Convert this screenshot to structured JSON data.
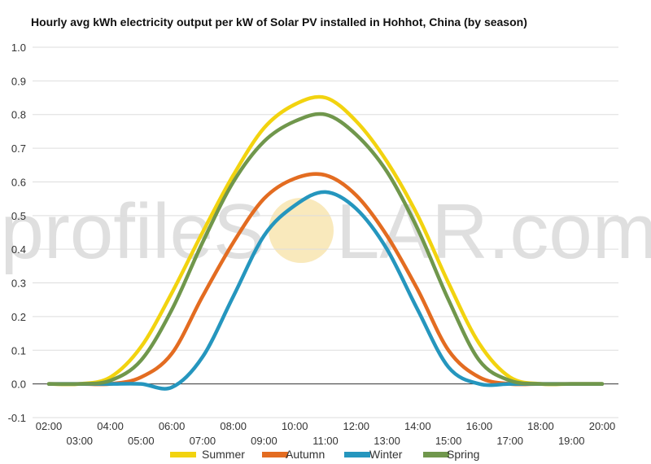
{
  "chart_data": {
    "type": "line",
    "title": "Hourly avg kWh electricity output per kW of Solar PV installed in Hohhot, China (by season)",
    "xlabel": "",
    "ylabel": "",
    "x": [
      "02:00",
      "03:00",
      "04:00",
      "05:00",
      "06:00",
      "07:00",
      "08:00",
      "09:00",
      "10:00",
      "11:00",
      "12:00",
      "13:00",
      "14:00",
      "15:00",
      "16:00",
      "17:00",
      "18:00",
      "19:00",
      "20:00"
    ],
    "ylim": [
      -0.1,
      1.0
    ],
    "yticks": [
      "-0.1",
      "0.0",
      "0.1",
      "0.2",
      "0.3",
      "0.4",
      "0.5",
      "0.6",
      "0.7",
      "0.8",
      "0.9",
      "1.0"
    ],
    "grid": true,
    "legend_position": "bottom",
    "series": [
      {
        "name": "Summer",
        "color": "#f2d30f",
        "values": [
          0.0,
          0.0,
          0.02,
          0.11,
          0.27,
          0.45,
          0.62,
          0.76,
          0.83,
          0.85,
          0.78,
          0.66,
          0.5,
          0.3,
          0.12,
          0.02,
          0.0,
          0.0,
          0.0
        ]
      },
      {
        "name": "Autumn",
        "color": "#e36c21",
        "values": [
          0.0,
          0.0,
          0.0,
          0.02,
          0.09,
          0.26,
          0.42,
          0.55,
          0.61,
          0.62,
          0.56,
          0.44,
          0.28,
          0.1,
          0.02,
          0.0,
          0.0,
          0.0,
          0.0
        ]
      },
      {
        "name": "Winter",
        "color": "#2596be",
        "values": [
          0.0,
          0.0,
          0.0,
          0.0,
          -0.01,
          0.08,
          0.26,
          0.44,
          0.53,
          0.57,
          0.52,
          0.4,
          0.22,
          0.05,
          0.0,
          0.0,
          0.0,
          0.0,
          0.0
        ]
      },
      {
        "name": "Spring",
        "color": "#70974c",
        "values": [
          0.0,
          0.0,
          0.01,
          0.07,
          0.22,
          0.42,
          0.6,
          0.72,
          0.78,
          0.8,
          0.74,
          0.63,
          0.46,
          0.25,
          0.07,
          0.01,
          0.0,
          0.0,
          0.0
        ]
      }
    ],
    "watermark": {
      "text_left": "profileS",
      "text_right": "LAR.com",
      "sun_color": "#f3d37a"
    }
  }
}
